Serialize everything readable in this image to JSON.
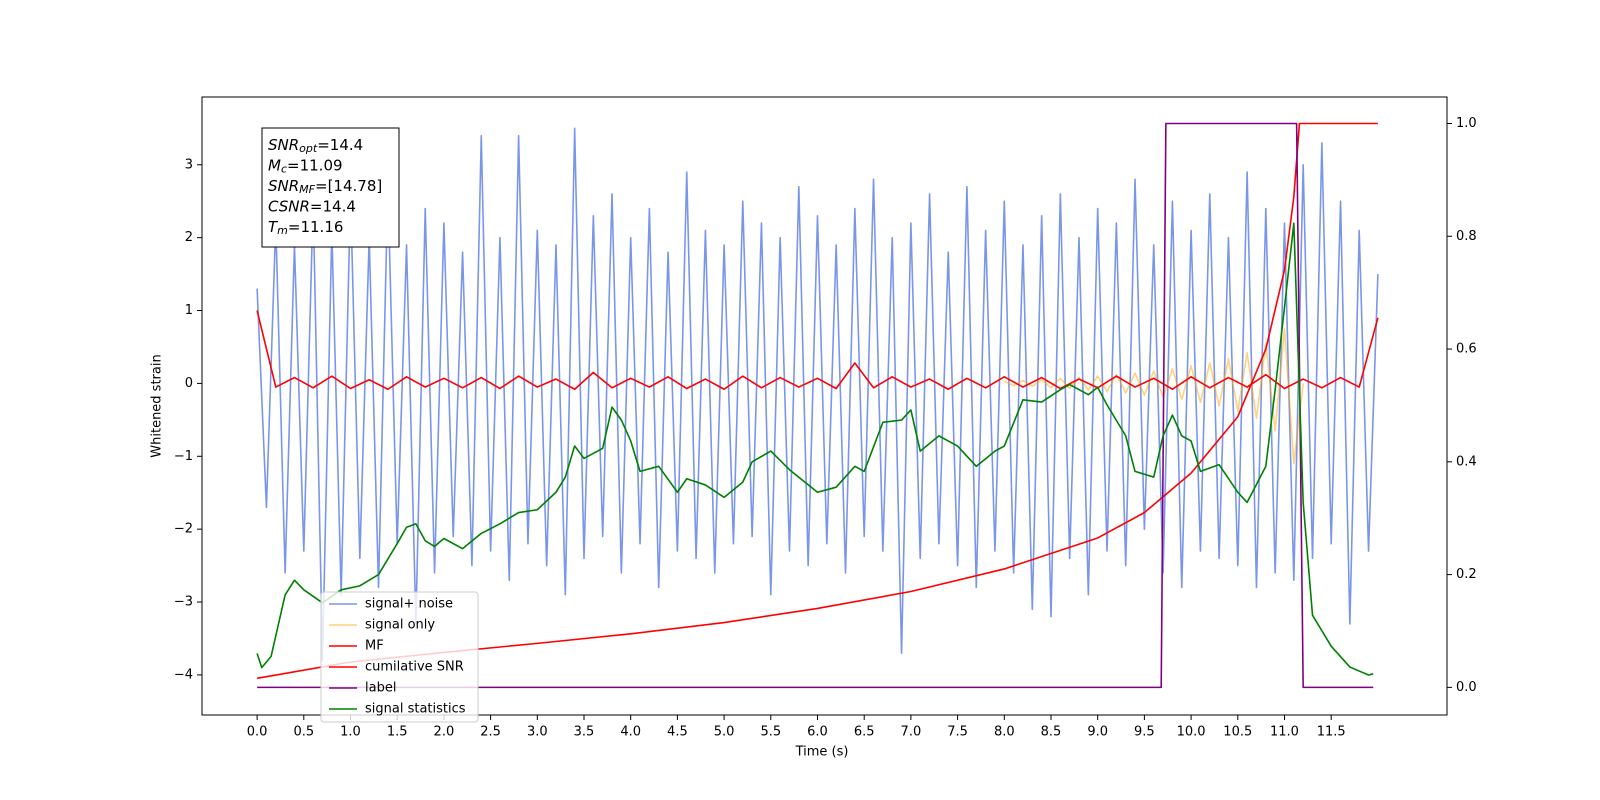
{
  "chart_data": {
    "type": "line",
    "xlabel": "Time (s)",
    "ylabel": "Whitened strain",
    "xlim": [
      -0.59,
      12.74
    ],
    "ylim": [
      -4.55,
      3.93
    ],
    "y2lim": [
      -0.049,
      1.047
    ],
    "xticks": [
      {
        "value": 0,
        "label": "0.0"
      },
      0.5,
      {
        "value": 1,
        "label": "1.0"
      },
      1.5,
      {
        "value": 2,
        "label": "2.0"
      },
      2.5,
      {
        "value": 3,
        "label": "3.0"
      },
      3.5,
      {
        "value": 4,
        "label": "4.0"
      },
      4.5,
      {
        "value": 5,
        "label": "5.0"
      },
      5.5,
      {
        "value": 6,
        "label": "6.0"
      },
      6.5,
      {
        "value": 7,
        "label": "7.0"
      },
      7.5,
      {
        "value": 8,
        "label": "8.0"
      },
      8.5,
      {
        "value": 9,
        "label": "9.0"
      },
      9.5,
      {
        "value": 10,
        "label": "10.0"
      },
      10.5,
      {
        "value": 11,
        "label": "11.0"
      },
      11.5
    ],
    "yticks": [
      {
        "value": -4,
        "label": "−4"
      },
      {
        "value": -3,
        "label": "−3"
      },
      {
        "value": -2,
        "label": "−2"
      },
      {
        "value": -1,
        "label": "−1"
      },
      0,
      1,
      2,
      3
    ],
    "y2ticks": [
      {
        "value": 0,
        "label": "0.0"
      },
      0.2,
      0.4,
      0.6,
      0.8,
      {
        "value": 1,
        "label": "1.0"
      }
    ],
    "legend_loc": "lower left",
    "text_box": [
      {
        "main": "SNR",
        "sub": "opt",
        "rest": "=14.4"
      },
      {
        "main": "M",
        "sub": "c",
        "rest": "=11.09"
      },
      {
        "main": "SNR",
        "sub": "MF",
        "rest": "=[14.78]"
      },
      {
        "main": "CSNR",
        "sub": "",
        "rest": "=14.4"
      },
      {
        "main": "T",
        "sub": "m",
        "rest": "=11.16"
      }
    ],
    "series": [
      {
        "name": "signal+ noise",
        "color": "#4169e1",
        "alpha": 0.7,
        "x": [
          0,
          0.1,
          0.2,
          0.3,
          0.4,
          0.5,
          0.6,
          0.7,
          0.8,
          0.9,
          1,
          1.1,
          1.2,
          1.3,
          1.4,
          1.5,
          1.6,
          1.7,
          1.8,
          1.9,
          2,
          2.1,
          2.2,
          2.3,
          2.4,
          2.5,
          2.6,
          2.7,
          2.8,
          2.9,
          3,
          3.1,
          3.2,
          3.3,
          3.4,
          3.5,
          3.6,
          3.7,
          3.8,
          3.9,
          4,
          4.1,
          4.2,
          4.3,
          4.4,
          4.5,
          4.6,
          4.7,
          4.8,
          4.9,
          5,
          5.1,
          5.2,
          5.3,
          5.4,
          5.5,
          5.6,
          5.7,
          5.8,
          5.9,
          6,
          6.1,
          6.2,
          6.3,
          6.4,
          6.5,
          6.6,
          6.7,
          6.8,
          6.9,
          7,
          7.1,
          7.2,
          7.3,
          7.4,
          7.5,
          7.6,
          7.7,
          7.8,
          7.9,
          8,
          8.1,
          8.2,
          8.3,
          8.4,
          8.5,
          8.6,
          8.7,
          8.8,
          8.9,
          9,
          9.1,
          9.2,
          9.3,
          9.4,
          9.5,
          9.6,
          9.7,
          9.8,
          9.9,
          10,
          10.1,
          10.2,
          10.3,
          10.4,
          10.5,
          10.6,
          10.7,
          10.8,
          10.9,
          11,
          11.1,
          11.2,
          11.3,
          11.4,
          11.5,
          11.6,
          11.7,
          11.8,
          11.9,
          12
        ],
        "values": [
          1.3,
          -1.7,
          2.2,
          -2.6,
          1.9,
          -2.3,
          2.5,
          -3.8,
          2.1,
          -2.9,
          2.6,
          -2.4,
          2.0,
          -2.8,
          2.7,
          -2.2,
          1.9,
          -3.3,
          2.4,
          -2.6,
          2.2,
          -2.1,
          1.8,
          -2.5,
          3.4,
          -2.3,
          2.0,
          -2.7,
          3.4,
          -2.2,
          2.1,
          -2.5,
          1.9,
          -2.9,
          3.5,
          -2.4,
          2.3,
          -2.1,
          2.6,
          -2.6,
          2.0,
          -2.2,
          2.4,
          -2.8,
          1.8,
          -2.3,
          2.9,
          -2.4,
          2.1,
          -2.6,
          1.9,
          -2.2,
          2.5,
          -2.1,
          2.2,
          -2.9,
          2.0,
          -2.3,
          2.7,
          -2.5,
          2.3,
          -2.2,
          1.9,
          -2.6,
          2.4,
          -2.1,
          2.8,
          -2.3,
          2.0,
          -3.7,
          2.2,
          -2.4,
          2.6,
          -2.2,
          1.8,
          -2.5,
          2.7,
          -2.8,
          2.1,
          -2.3,
          2.5,
          -2.6,
          1.9,
          -3.1,
          2.3,
          -3.2,
          2.6,
          -2.4,
          2.0,
          -2.9,
          2.4,
          -2.3,
          2.2,
          -2.5,
          2.8,
          -2.0,
          1.9,
          -2.6,
          2.5,
          -2.8,
          2.1,
          -2.3,
          2.6,
          -2.4,
          2.0,
          -2.5,
          2.9,
          -2.8,
          2.4,
          -2.6,
          2.2,
          -2.7,
          3.0,
          -2.4,
          3.3,
          -2.2,
          2.5,
          -3.3,
          2.1,
          -2.3,
          1.5
        ]
      },
      {
        "name": "signal only",
        "color": "#ffa500",
        "alpha": 0.5,
        "x": [
          8,
          8.1,
          8.2,
          8.3,
          8.4,
          8.5,
          8.6,
          8.7,
          8.8,
          8.9,
          9,
          9.1,
          9.2,
          9.3,
          9.4,
          9.5,
          9.6,
          9.7,
          9.8,
          9.9,
          10,
          10.1,
          10.2,
          10.3,
          10.4,
          10.5,
          10.6,
          10.7,
          10.8,
          10.9,
          11,
          11.1,
          11.2
        ],
        "values": [
          0.03,
          -0.03,
          0.04,
          -0.04,
          0.05,
          -0.06,
          0.07,
          -0.07,
          0.08,
          -0.09,
          0.1,
          -0.11,
          0.12,
          -0.13,
          0.14,
          -0.16,
          0.17,
          -0.19,
          0.2,
          -0.22,
          0.24,
          -0.26,
          0.28,
          -0.31,
          0.34,
          -0.38,
          0.42,
          -0.48,
          0.55,
          -0.65,
          0.75,
          -1.1,
          0
        ]
      },
      {
        "name": "MF",
        "color": "#ff0000",
        "alpha": 1,
        "x": [
          0,
          0.2,
          0.4,
          0.6,
          0.8,
          1,
          1.2,
          1.4,
          1.6,
          1.8,
          2,
          2.2,
          2.4,
          2.6,
          2.8,
          3,
          3.2,
          3.4,
          3.6,
          3.8,
          4,
          4.2,
          4.4,
          4.6,
          4.8,
          5,
          5.2,
          5.4,
          5.6,
          5.8,
          6,
          6.2,
          6.4,
          6.6,
          6.8,
          7,
          7.2,
          7.4,
          7.6,
          7.8,
          8,
          8.2,
          8.4,
          8.6,
          8.8,
          9,
          9.2,
          9.4,
          9.6,
          9.8,
          10,
          10.2,
          10.4,
          10.6,
          10.8,
          11,
          11.2,
          11.4,
          11.6,
          11.8,
          12
        ],
        "values": [
          1.0,
          -0.05,
          0.08,
          -0.06,
          0.1,
          -0.07,
          0.05,
          -0.08,
          0.09,
          -0.05,
          0.07,
          -0.06,
          0.08,
          -0.07,
          0.1,
          -0.05,
          0.06,
          -0.08,
          0.15,
          -0.06,
          0.07,
          -0.05,
          0.09,
          -0.07,
          0.06,
          -0.08,
          0.1,
          -0.06,
          0.08,
          -0.05,
          0.07,
          -0.07,
          0.28,
          -0.06,
          0.09,
          -0.05,
          0.06,
          -0.08,
          0.07,
          -0.06,
          0.09,
          -0.05,
          0.08,
          -0.07,
          0.06,
          -0.06,
          0.1,
          -0.05,
          0.07,
          -0.08,
          0.09,
          -0.06,
          0.08,
          -0.05,
          0.12,
          -0.07,
          0.06,
          -0.06,
          0.08,
          -0.05,
          0.9
        ]
      },
      {
        "name": "cumilative SNR",
        "color": "#ff0000",
        "alpha": 1,
        "axis": "y2",
        "x": [
          0,
          1,
          2,
          3,
          4,
          5,
          6,
          7,
          8,
          9,
          9.5,
          10,
          10.5,
          10.8,
          11,
          11.1,
          11.16,
          11.2,
          12
        ],
        "values": [
          0.016,
          0.045,
          0.062,
          0.078,
          0.095,
          0.115,
          0.14,
          0.17,
          0.21,
          0.265,
          0.31,
          0.38,
          0.48,
          0.6,
          0.74,
          0.87,
          1.0,
          1.0,
          1.0
        ]
      },
      {
        "name": "label",
        "color": "#800080",
        "alpha": 1,
        "axis": "y2",
        "x": [
          0,
          9.68,
          9.73,
          11.13,
          11.2,
          11.95
        ],
        "values": [
          0,
          0,
          1,
          1,
          0,
          0
        ]
      },
      {
        "name": "signal statistics",
        "color": "#008000",
        "alpha": 1,
        "axis": "y2",
        "x": [
          0,
          0.05,
          0.15,
          0.3,
          0.4,
          0.5,
          0.7,
          0.9,
          1.1,
          1.3,
          1.5,
          1.6,
          1.7,
          1.8,
          1.9,
          2.0,
          2.2,
          2.4,
          2.6,
          2.8,
          3.0,
          3.2,
          3.3,
          3.4,
          3.5,
          3.7,
          3.8,
          3.9,
          4.0,
          4.1,
          4.3,
          4.5,
          4.6,
          4.8,
          5.0,
          5.2,
          5.3,
          5.5,
          5.7,
          6.0,
          6.2,
          6.4,
          6.5,
          6.7,
          6.9,
          7.0,
          7.1,
          7.3,
          7.5,
          7.7,
          7.9,
          8.0,
          8.2,
          8.4,
          8.6,
          8.7,
          8.9,
          9.0,
          9.1,
          9.3,
          9.4,
          9.6,
          9.7,
          9.8,
          9.9,
          10.0,
          10.1,
          10.3,
          10.5,
          10.6,
          10.8,
          10.9,
          11.0,
          11.1,
          11.2,
          11.3,
          11.5,
          11.7,
          11.9,
          11.95
        ],
        "values": [
          0.06,
          0.035,
          0.055,
          0.164,
          0.19,
          0.173,
          0.15,
          0.173,
          0.18,
          0.2,
          0.255,
          0.284,
          0.29,
          0.26,
          0.25,
          0.264,
          0.246,
          0.273,
          0.29,
          0.31,
          0.315,
          0.346,
          0.373,
          0.428,
          0.406,
          0.424,
          0.497,
          0.474,
          0.437,
          0.383,
          0.392,
          0.346,
          0.37,
          0.359,
          0.337,
          0.364,
          0.4,
          0.419,
          0.386,
          0.346,
          0.355,
          0.392,
          0.383,
          0.47,
          0.474,
          0.492,
          0.419,
          0.446,
          0.428,
          0.392,
          0.419,
          0.428,
          0.51,
          0.506,
          0.528,
          0.537,
          0.519,
          0.532,
          0.501,
          0.446,
          0.383,
          0.373,
          0.446,
          0.483,
          0.446,
          0.437,
          0.383,
          0.395,
          0.346,
          0.328,
          0.392,
          0.528,
          0.674,
          0.823,
          0.328,
          0.128,
          0.073,
          0.036,
          0.022,
          0.024
        ]
      }
    ]
  }
}
